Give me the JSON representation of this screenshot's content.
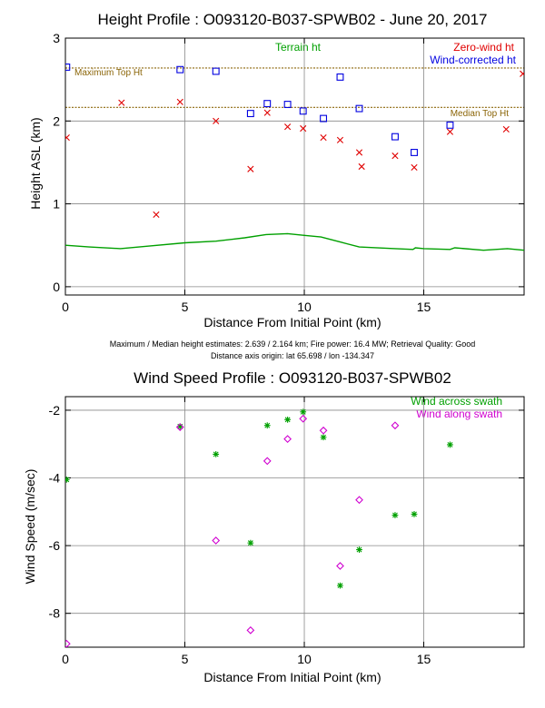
{
  "chart_data": [
    {
      "type": "scatter",
      "title": "Height Profile : O093120-B037-SPWB02 - June 20, 2017",
      "xlabel": "Distance From Initial Point (km)",
      "ylabel": "Height ASL (km)",
      "xlim": [
        0,
        19.2
      ],
      "ylim": [
        -0.1,
        3.0
      ],
      "xticks": [
        0,
        5,
        10,
        15
      ],
      "yticks": [
        0,
        1,
        2,
        3
      ],
      "grid": true,
      "legend_position": "top-right",
      "series": [
        {
          "name": "Terrain ht",
          "kind": "line",
          "color": "#00a000",
          "x": [
            0,
            1,
            2.3,
            3.5,
            5,
            6.3,
            7.5,
            8.4,
            9.3,
            10,
            10.7,
            11.5,
            12.3,
            13.8,
            14.55,
            14.65,
            15,
            16.1,
            16.3,
            17.5,
            18.5,
            19.2
          ],
          "y": [
            0.5,
            0.48,
            0.46,
            0.49,
            0.53,
            0.55,
            0.59,
            0.63,
            0.64,
            0.62,
            0.6,
            0.54,
            0.48,
            0.46,
            0.45,
            0.47,
            0.46,
            0.45,
            0.47,
            0.44,
            0.46,
            0.44
          ]
        },
        {
          "name": "Zero-wind ht",
          "kind": "marker",
          "marker": "x",
          "color": "#e00000",
          "x": [
            0.05,
            2.35,
            3.8,
            4.8,
            6.3,
            7.75,
            8.45,
            9.3,
            9.95,
            10.8,
            11.5,
            12.3,
            12.4,
            13.8,
            14.6,
            16.1,
            18.45,
            19.15
          ],
          "y": [
            1.8,
            2.22,
            0.87,
            2.23,
            2.0,
            1.42,
            2.1,
            1.93,
            1.91,
            1.8,
            1.77,
            1.62,
            1.45,
            1.58,
            1.44,
            1.87,
            1.9,
            2.57
          ]
        },
        {
          "name": "Wind-corrected ht",
          "kind": "marker",
          "marker": "square",
          "color": "#0000e0",
          "x": [
            0.05,
            4.8,
            6.3,
            7.75,
            8.45,
            9.3,
            9.95,
            10.8,
            11.5,
            12.3,
            13.8,
            14.6,
            16.1
          ],
          "y": [
            2.65,
            2.62,
            2.6,
            2.09,
            2.21,
            2.2,
            2.12,
            2.03,
            2.53,
            2.15,
            1.81,
            1.62,
            1.95
          ]
        }
      ],
      "reference_lines": [
        {
          "label": "Maximum Top Ht",
          "y": 2.639,
          "color": "#8B6508"
        },
        {
          "label": "Median Top Ht",
          "y": 2.164,
          "color": "#8B6508"
        }
      ]
    },
    {
      "type": "scatter",
      "title": "Wind Speed Profile : O093120-B037-SPWB02",
      "xlabel": "Distance From Initial Point (km)",
      "ylabel": "Wind Speed (m/sec)",
      "xlim": [
        0,
        19.2
      ],
      "ylim": [
        -9.0,
        -1.6
      ],
      "xticks": [
        0,
        5,
        10,
        15
      ],
      "yticks": [
        -8,
        -6,
        -4,
        -2
      ],
      "grid": true,
      "legend_position": "top-right",
      "series": [
        {
          "name": "Wind across swath",
          "marker": "asterisk",
          "color": "#00a000",
          "x": [
            0.05,
            4.8,
            6.3,
            7.75,
            8.45,
            9.3,
            9.95,
            10.8,
            11.5,
            12.3,
            13.8,
            14.6,
            16.1
          ],
          "y": [
            -4.05,
            -2.48,
            -3.3,
            -5.92,
            -2.45,
            -2.28,
            -2.05,
            -2.8,
            -7.18,
            -6.12,
            -5.1,
            -5.07,
            -3.02
          ]
        },
        {
          "name": "Wind along swath",
          "marker": "diamond",
          "color": "#d000d0",
          "x": [
            0.05,
            4.8,
            6.3,
            7.75,
            8.45,
            9.3,
            9.95,
            10.8,
            11.5,
            12.3,
            13.8
          ],
          "y": [
            -8.9,
            -2.5,
            -5.85,
            -8.5,
            -3.5,
            -2.85,
            -2.25,
            -2.6,
            -6.6,
            -4.65,
            -2.45
          ]
        }
      ]
    }
  ],
  "info": {
    "line1": "Maximum / Median height estimates:  2.639 /  2.164 km;    Fire power:     16.4 MW;     Retrieval Quality: Good",
    "line2": "Distance axis origin: lat  65.698 / lon -134.347"
  }
}
